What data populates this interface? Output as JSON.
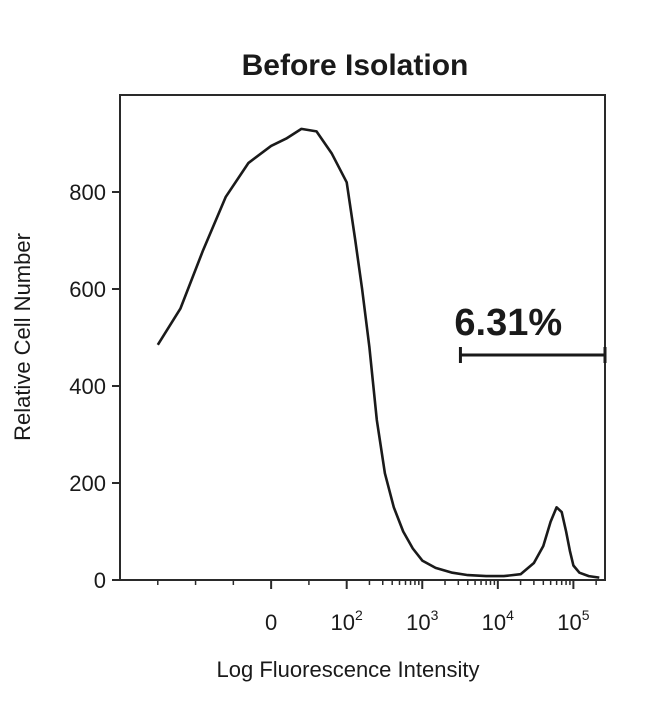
{
  "chart_data": {
    "type": "histogram",
    "title": "Before Isolation",
    "xlabel": "Log Fluorescence Intensity",
    "ylabel": "Relative Cell Number",
    "x_scale": "biexponential",
    "ylim": [
      0,
      1000
    ],
    "y_ticks": [
      0,
      200,
      400,
      600,
      800
    ],
    "x_ticks": [
      {
        "value": 0,
        "base": "0",
        "exp": ""
      },
      {
        "value": 100,
        "base": "10",
        "exp": "2"
      },
      {
        "value": 1000,
        "base": "10",
        "exp": "3"
      },
      {
        "value": 10000,
        "base": "10",
        "exp": "4"
      },
      {
        "value": 100000,
        "base": "10",
        "exp": "5"
      }
    ],
    "gate": {
      "label": "6.31%",
      "x_start": 3200,
      "x_end": 262000
    },
    "series": [
      {
        "x": [
          -150,
          -120,
          -90,
          -60,
          -30,
          0,
          20,
          40,
          60,
          80,
          100,
          130,
          160,
          200,
          250,
          320,
          420,
          560,
          750,
          1000,
          1500,
          2500,
          4000,
          7000,
          12000,
          20000,
          30000,
          40000,
          50000,
          60000,
          70000,
          80000,
          90000,
          100000,
          120000,
          160000,
          220000
        ],
        "y": [
          485,
          560,
          680,
          790,
          860,
          895,
          910,
          930,
          925,
          880,
          820,
          700,
          600,
          480,
          330,
          220,
          150,
          100,
          65,
          40,
          25,
          15,
          10,
          8,
          8,
          12,
          35,
          70,
          120,
          150,
          140,
          100,
          60,
          30,
          15,
          8,
          5
        ]
      }
    ]
  }
}
